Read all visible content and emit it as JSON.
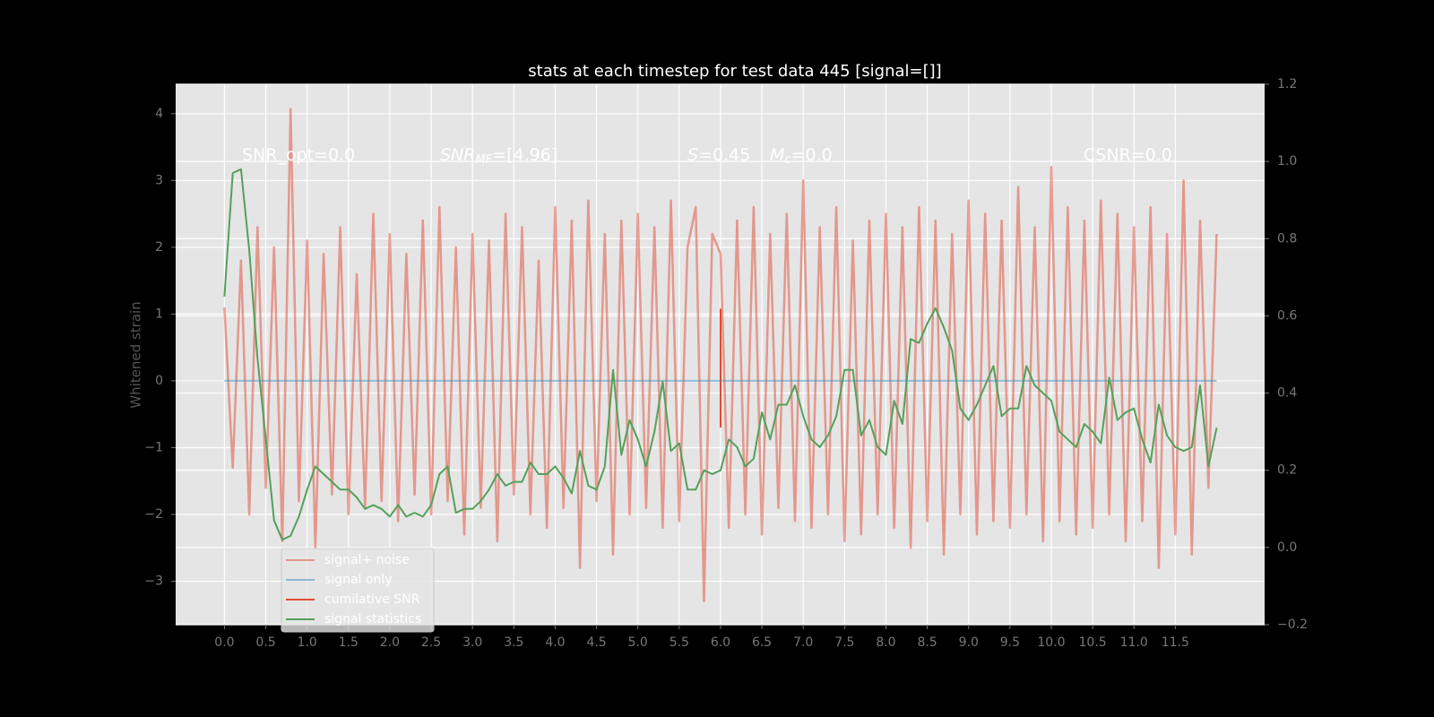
{
  "chart_data": {
    "type": "line",
    "title": "stats at each timestep for test data 445 [signal=[]]",
    "y_label": "Whitened strain",
    "annotations": [
      {
        "text": "SNR_opt=0.0"
      },
      {
        "var": "SNR",
        "sub": "MF",
        "text": "=[4.96]"
      },
      {
        "var": "S",
        "text": "=0.45"
      },
      {
        "var": "M",
        "sub": "c",
        "text": "=0.0"
      },
      {
        "text": "CSNR=0.0"
      }
    ],
    "x": [
      0,
      0.1,
      0.2,
      0.3,
      0.4,
      0.5,
      0.6,
      0.7,
      0.8,
      0.9,
      1,
      1.1,
      1.2,
      1.3,
      1.4,
      1.5,
      1.6,
      1.7,
      1.8,
      1.9,
      2,
      2.1,
      2.2,
      2.3,
      2.4,
      2.5,
      2.6,
      2.7,
      2.8,
      2.9,
      3,
      3.1,
      3.2,
      3.3,
      3.4,
      3.5,
      3.6,
      3.7,
      3.8,
      3.9,
      4,
      4.1,
      4.2,
      4.3,
      4.4,
      4.5,
      4.6,
      4.7,
      4.8,
      4.9,
      5,
      5.1,
      5.2,
      5.3,
      5.4,
      5.5,
      5.6,
      5.7,
      5.8,
      5.9,
      6,
      6.1,
      6.2,
      6.3,
      6.4,
      6.5,
      6.6,
      6.7,
      6.8,
      6.9,
      7,
      7.1,
      7.2,
      7.3,
      7.4,
      7.5,
      7.6,
      7.7,
      7.8,
      7.9,
      8,
      8.1,
      8.2,
      8.3,
      8.4,
      8.5,
      8.6,
      8.7,
      8.8,
      8.9,
      9,
      9.1,
      9.2,
      9.3,
      9.4,
      9.5,
      9.6,
      9.7,
      9.8,
      9.9,
      10,
      10.1,
      10.2,
      10.3,
      10.4,
      10.5,
      10.6,
      10.7,
      10.8,
      10.9,
      11,
      11.1,
      11.2,
      11.3,
      11.4,
      11.5,
      11.6,
      11.7,
      11.8,
      11.9,
      12
    ],
    "series": [
      {
        "name": "signal+ noise",
        "color": "#e24a33",
        "alpha": 0.5,
        "values": [
          1.1,
          -1.3,
          1.8,
          -2.0,
          2.3,
          -1.6,
          2.0,
          -2.4,
          4.07,
          -1.8,
          2.1,
          -2.5,
          1.9,
          -1.7,
          2.3,
          -2.0,
          1.6,
          -1.9,
          2.5,
          -1.8,
          2.2,
          -2.1,
          1.9,
          -1.7,
          2.4,
          -2.0,
          2.6,
          -1.8,
          2.0,
          -2.3,
          2.2,
          -1.9,
          2.1,
          -2.4,
          2.5,
          -1.7,
          2.3,
          -2.0,
          1.8,
          -2.2,
          2.6,
          -1.9,
          2.4,
          -2.8,
          2.7,
          -1.8,
          2.2,
          -2.6,
          2.4,
          -2.0,
          2.5,
          -1.9,
          2.3,
          -2.2,
          2.7,
          -2.1,
          2.0,
          2.6,
          -3.3,
          2.2,
          1.9,
          -2.2,
          2.4,
          -2.0,
          2.6,
          -2.3,
          2.2,
          -1.9,
          2.5,
          -2.1,
          3.0,
          -2.2,
          2.3,
          -2.0,
          2.6,
          -2.4,
          2.1,
          -2.3,
          2.4,
          -2.0,
          2.5,
          -2.2,
          2.3,
          -2.5,
          2.6,
          -2.1,
          2.4,
          -2.6,
          2.2,
          -2.0,
          2.7,
          -2.3,
          2.5,
          -2.1,
          2.4,
          -2.2,
          2.9,
          -2.0,
          2.3,
          -2.4,
          3.2,
          -2.1,
          2.6,
          -2.3,
          2.4,
          -2.2,
          2.7,
          -2.0,
          2.5,
          -2.4,
          2.3,
          -2.1,
          2.6,
          -2.8,
          2.2,
          -2.3,
          3.0,
          -2.6,
          2.4,
          -1.6,
          2.2
        ]
      },
      {
        "name": "signal only",
        "color": "#348abd",
        "alpha": 0.5,
        "x": [
          0,
          12
        ],
        "values": [
          0,
          0
        ]
      },
      {
        "name": "cumilative SNR",
        "color": "#e24a33",
        "alpha": 1,
        "x": [
          6,
          6
        ],
        "values": [
          1.08,
          -0.7
        ]
      },
      {
        "name": "signal statistics",
        "color": "#55a05a",
        "alpha": 1,
        "axis": "y2",
        "values": [
          0.65,
          0.97,
          0.98,
          0.77,
          0.49,
          0.28,
          0.07,
          0.02,
          0.03,
          0.08,
          0.15,
          0.21,
          0.19,
          0.17,
          0.15,
          0.15,
          0.13,
          0.1,
          0.11,
          0.1,
          0.08,
          0.11,
          0.08,
          0.09,
          0.08,
          0.11,
          0.19,
          0.21,
          0.09,
          0.1,
          0.1,
          0.12,
          0.15,
          0.19,
          0.16,
          0.17,
          0.17,
          0.22,
          0.19,
          0.19,
          0.21,
          0.18,
          0.14,
          0.25,
          0.16,
          0.15,
          0.21,
          0.46,
          0.24,
          0.33,
          0.28,
          0.21,
          0.3,
          0.43,
          0.25,
          0.27,
          0.15,
          0.15,
          0.2,
          0.19,
          0.2,
          0.28,
          0.26,
          0.21,
          0.23,
          0.35,
          0.28,
          0.37,
          0.37,
          0.42,
          0.34,
          0.28,
          0.26,
          0.29,
          0.34,
          0.46,
          0.46,
          0.29,
          0.33,
          0.26,
          0.24,
          0.38,
          0.32,
          0.54,
          0.53,
          0.58,
          0.62,
          0.57,
          0.51,
          0.36,
          0.33,
          0.37,
          0.42,
          0.47,
          0.34,
          0.36,
          0.36,
          0.47,
          0.42,
          0.4,
          0.38,
          0.3,
          0.28,
          0.26,
          0.32,
          0.3,
          0.27,
          0.44,
          0.33,
          0.35,
          0.36,
          0.28,
          0.22,
          0.37,
          0.29,
          0.26,
          0.25,
          0.26,
          0.42,
          0.21,
          0.31
        ]
      }
    ],
    "xlim": [
      -0.59,
      12.58
    ],
    "xticks": [
      {
        "value": 0,
        "label": "0.0"
      },
      0.5,
      {
        "value": 1,
        "label": "1.0"
      },
      1.5,
      {
        "value": 2,
        "label": "2.0"
      },
      2.5,
      {
        "value": 3,
        "label": "3.0"
      },
      3.5,
      {
        "value": 4,
        "label": "4.0"
      },
      4.5,
      {
        "value": 5,
        "label": "5.0"
      },
      5.5,
      {
        "value": 6,
        "label": "6.0"
      },
      6.5,
      {
        "value": 7,
        "label": "7.0"
      },
      7.5,
      {
        "value": 8,
        "label": "8.0"
      },
      8.5,
      {
        "value": 9,
        "label": "9.0"
      },
      9.5,
      {
        "value": 10,
        "label": "10.0"
      },
      10.5,
      {
        "value": 11,
        "label": "11.0"
      },
      11.5
    ],
    "ylim": [
      -3.65,
      4.44
    ],
    "yticks": [
      {
        "value": -3,
        "label": "−3"
      },
      {
        "value": -2,
        "label": "−2"
      },
      {
        "value": -1,
        "label": "−1"
      },
      0,
      1,
      2,
      3,
      4
    ],
    "y2lim": [
      -0.2,
      1.2
    ],
    "y2ticks": [
      {
        "value": -0.2,
        "label": "−0.2"
      },
      {
        "value": 0,
        "label": "0.0"
      },
      0.2,
      0.4,
      0.6,
      0.8,
      {
        "value": 1,
        "label": "1.0"
      },
      1.2
    ],
    "grid": true,
    "legend": "lower left"
  }
}
